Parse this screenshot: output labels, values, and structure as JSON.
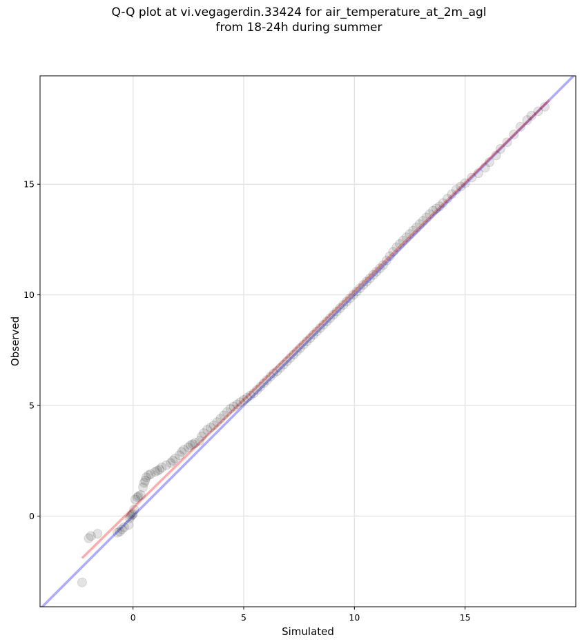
{
  "chart_data": {
    "type": "scatter",
    "title_line1": "Q-Q plot at vi.vegagerdin.33424 for air_temperature_at_2m_agl",
    "title_line2": "from 18-24h during summer",
    "xlabel": "Simulated",
    "ylabel": "Observed",
    "xlim": [
      -4.2,
      20.0
    ],
    "ylim": [
      -4.1,
      19.9
    ],
    "xticks": [
      0,
      5,
      10,
      15
    ],
    "yticks": [
      0,
      5,
      10,
      15
    ],
    "grid": true,
    "series": [
      {
        "role": "quantiles",
        "color": "#000000",
        "x": [
          -2.3,
          -2.0,
          -1.9,
          -1.6,
          -0.7,
          -0.6,
          -0.5,
          -0.4,
          -0.2,
          -0.15,
          -0.1,
          -0.05,
          0.0,
          0.05,
          0.1,
          0.2,
          0.25,
          0.35,
          0.45,
          0.5,
          0.55,
          0.6,
          0.7,
          0.8,
          1.0,
          1.1,
          1.2,
          1.3,
          1.5,
          1.7,
          1.8,
          1.9,
          2.1,
          2.2,
          2.3,
          2.5,
          2.6,
          2.7,
          2.8,
          3.0,
          3.1,
          3.2,
          3.35,
          3.5,
          3.65,
          3.8,
          3.95,
          4.1,
          4.25,
          4.4,
          4.55,
          4.7,
          4.85,
          5.0,
          5.15,
          5.3,
          5.45,
          5.6,
          5.75,
          5.9,
          6.05,
          6.2,
          6.35,
          6.5,
          6.65,
          6.8,
          6.95,
          7.1,
          7.25,
          7.4,
          7.55,
          7.7,
          7.85,
          8.0,
          8.15,
          8.3,
          8.45,
          8.6,
          8.75,
          8.9,
          9.05,
          9.2,
          9.35,
          9.5,
          9.65,
          9.8,
          9.95,
          10.1,
          10.25,
          10.4,
          10.55,
          10.7,
          10.85,
          11.0,
          11.15,
          11.3,
          11.45,
          11.6,
          11.75,
          11.9,
          12.05,
          12.2,
          12.35,
          12.5,
          12.65,
          12.8,
          12.95,
          13.1,
          13.25,
          13.4,
          13.55,
          13.7,
          13.85,
          14.0,
          14.2,
          14.4,
          14.6,
          14.8,
          15.0,
          15.3,
          15.6,
          15.9,
          16.1,
          16.4,
          16.6,
          16.9,
          17.2,
          17.5,
          17.8,
          18.0,
          18.3,
          18.6
        ],
        "y": [
          -3.0,
          -1.0,
          -0.9,
          -0.8,
          -0.75,
          -0.7,
          -0.6,
          -0.5,
          -0.4,
          -0.1,
          0.0,
          0.05,
          0.1,
          0.3,
          0.75,
          0.85,
          0.9,
          0.95,
          1.3,
          1.5,
          1.6,
          1.75,
          1.85,
          1.9,
          2.0,
          2.05,
          2.1,
          2.2,
          2.3,
          2.4,
          2.5,
          2.6,
          2.75,
          2.9,
          3.0,
          3.1,
          3.2,
          3.25,
          3.3,
          3.4,
          3.6,
          3.75,
          3.9,
          4.0,
          4.1,
          4.25,
          4.4,
          4.55,
          4.7,
          4.85,
          4.95,
          5.05,
          5.15,
          5.25,
          5.35,
          5.45,
          5.55,
          5.7,
          5.85,
          6.0,
          6.15,
          6.3,
          6.45,
          6.55,
          6.7,
          6.85,
          7.0,
          7.15,
          7.3,
          7.45,
          7.6,
          7.75,
          7.9,
          8.05,
          8.2,
          8.35,
          8.5,
          8.65,
          8.8,
          8.95,
          9.1,
          9.25,
          9.4,
          9.55,
          9.7,
          9.85,
          10.0,
          10.15,
          10.3,
          10.45,
          10.6,
          10.75,
          10.9,
          11.05,
          11.2,
          11.35,
          11.55,
          11.75,
          11.95,
          12.15,
          12.3,
          12.45,
          12.6,
          12.75,
          12.9,
          13.05,
          13.2,
          13.35,
          13.5,
          13.65,
          13.8,
          13.9,
          14.0,
          14.15,
          14.35,
          14.55,
          14.75,
          14.9,
          15.05,
          15.3,
          15.5,
          15.75,
          16.0,
          16.3,
          16.6,
          16.9,
          17.25,
          17.6,
          17.9,
          18.1,
          18.3,
          18.5
        ]
      }
    ],
    "lines": [
      {
        "role": "identity",
        "color": "#0000ff",
        "x": [
          -4.2,
          20.0
        ],
        "y": [
          -4.2,
          20.0
        ]
      },
      {
        "role": "fit",
        "color": "#ff0000",
        "x": [
          -2.3,
          18.8
        ],
        "y": [
          -1.9,
          18.8
        ]
      }
    ]
  }
}
